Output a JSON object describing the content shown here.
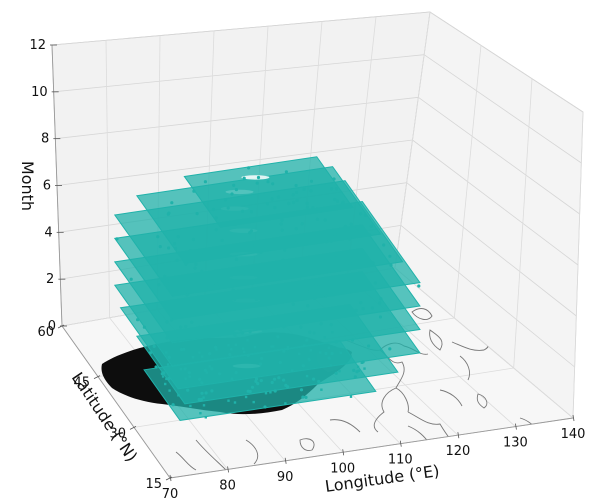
{
  "chart_data": {
    "type": "scatter",
    "projection": "3d",
    "xlabel": "Longitude (°E)",
    "ylabel": "Latitude (°N)",
    "zlabel": "Month",
    "xlim": [
      70,
      140
    ],
    "ylim": [
      15,
      60
    ],
    "zlim": [
      0,
      12
    ],
    "x_ticks": [
      "70",
      "80",
      "90",
      "100",
      "110",
      "120",
      "130",
      "140"
    ],
    "y_ticks": [
      "15",
      "30",
      "45",
      "60"
    ],
    "z_ticks": [
      "0",
      "2",
      "4",
      "6",
      "8",
      "10",
      "12"
    ],
    "grid": true,
    "pane_color": "#f2f2f2",
    "series": [
      {
        "color": "#20b2aa",
        "description_points": [
          {
            "month": 8,
            "lon_range": [
              85,
              108
            ],
            "lat_range": [
              30,
              45
            ]
          },
          {
            "month": 7,
            "lon_range": [
              78,
              112
            ],
            "lat_range": [
              28,
              48
            ]
          },
          {
            "month": 6,
            "lon_range": [
              75,
              115
            ],
            "lat_range": [
              26,
              50
            ]
          },
          {
            "month": 5,
            "lon_range": [
              75,
              118
            ],
            "lat_range": [
              26,
              50
            ]
          },
          {
            "month": 4,
            "lon_range": [
              75,
              118
            ],
            "lat_range": [
              26,
              50
            ]
          },
          {
            "month": 3,
            "lon_range": [
              75,
              118
            ],
            "lat_range": [
              26,
              50
            ]
          },
          {
            "month": 2,
            "lon_range": [
              76,
              118
            ],
            "lat_range": [
              26,
              50
            ]
          },
          {
            "month": 1,
            "lon_range": [
              78,
              115
            ],
            "lat_range": [
              28,
              48
            ]
          },
          {
            "month": 0,
            "lon_range": [
              78,
              112
            ],
            "lat_range": [
              30,
              45
            ]
          }
        ]
      },
      {
        "color": "#111111",
        "description_points": [
          {
            "month": 0,
            "lon_range": [
              74,
              112
            ],
            "lat_range": [
              28,
              50
            ]
          }
        ]
      }
    ]
  }
}
